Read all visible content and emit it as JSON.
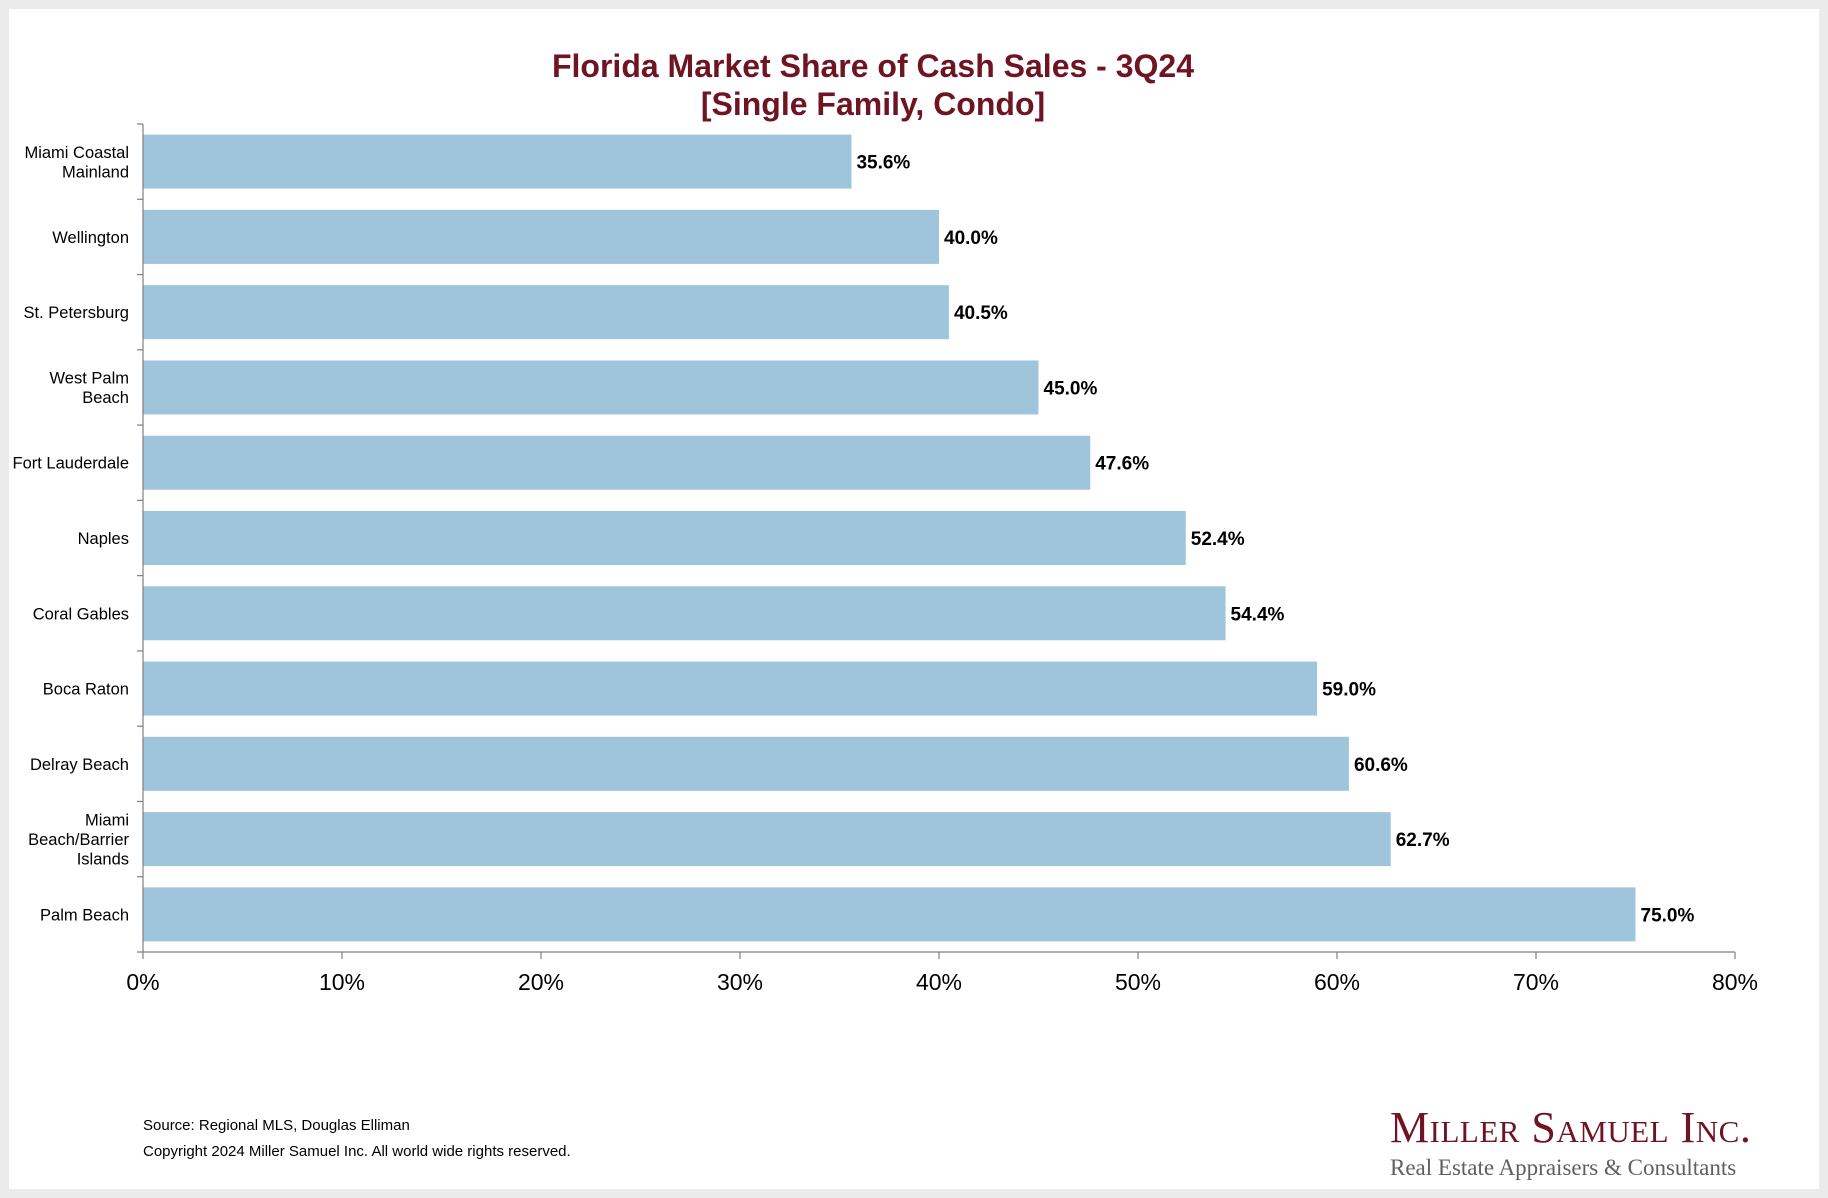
{
  "colors": {
    "title": "#6e1423",
    "bar": "#9fc5dc",
    "axis": "#7f7f7f",
    "logo_name": "#6e1423",
    "logo_tag": "#5f5f5f"
  },
  "chart_data": {
    "type": "bar",
    "orientation": "horizontal",
    "title": "Florida Market Share of Cash Sales - 3Q24",
    "subtitle": "[Single Family, Condo]",
    "categories": [
      [
        "Miami Coastal",
        "Mainland"
      ],
      [
        "Wellington"
      ],
      [
        "St. Petersburg"
      ],
      [
        "West Palm",
        "Beach"
      ],
      [
        "Fort Lauderdale"
      ],
      [
        "Naples"
      ],
      [
        "Coral Gables"
      ],
      [
        "Boca Raton"
      ],
      [
        "Delray Beach"
      ],
      [
        "Miami",
        "Beach/Barrier",
        "Islands"
      ],
      [
        "Palm Beach"
      ]
    ],
    "values": [
      35.6,
      40.0,
      40.5,
      45.0,
      47.6,
      52.4,
      54.4,
      59.0,
      60.6,
      62.7,
      75.0
    ],
    "value_labels": [
      "35.6%",
      "40.0%",
      "40.5%",
      "45.0%",
      "47.6%",
      "52.4%",
      "54.4%",
      "59.0%",
      "60.6%",
      "62.7%",
      "75.0%"
    ],
    "xlim": [
      0,
      80
    ],
    "x_ticks": [
      0,
      10,
      20,
      30,
      40,
      50,
      60,
      70,
      80
    ],
    "x_tick_labels": [
      "0%",
      "10%",
      "20%",
      "30%",
      "40%",
      "50%",
      "60%",
      "70%",
      "80%"
    ],
    "xlabel": "",
    "ylabel": "",
    "grid": false,
    "legend": "none"
  },
  "footer": {
    "source": "Source: Regional MLS, Douglas Elliman",
    "copyright": "Copyright 2024 Miller Samuel Inc.  All world wide rights reserved."
  },
  "logo": {
    "name": "Miller Samuel Inc.",
    "tagline": "Real Estate Appraisers & Consultants"
  }
}
